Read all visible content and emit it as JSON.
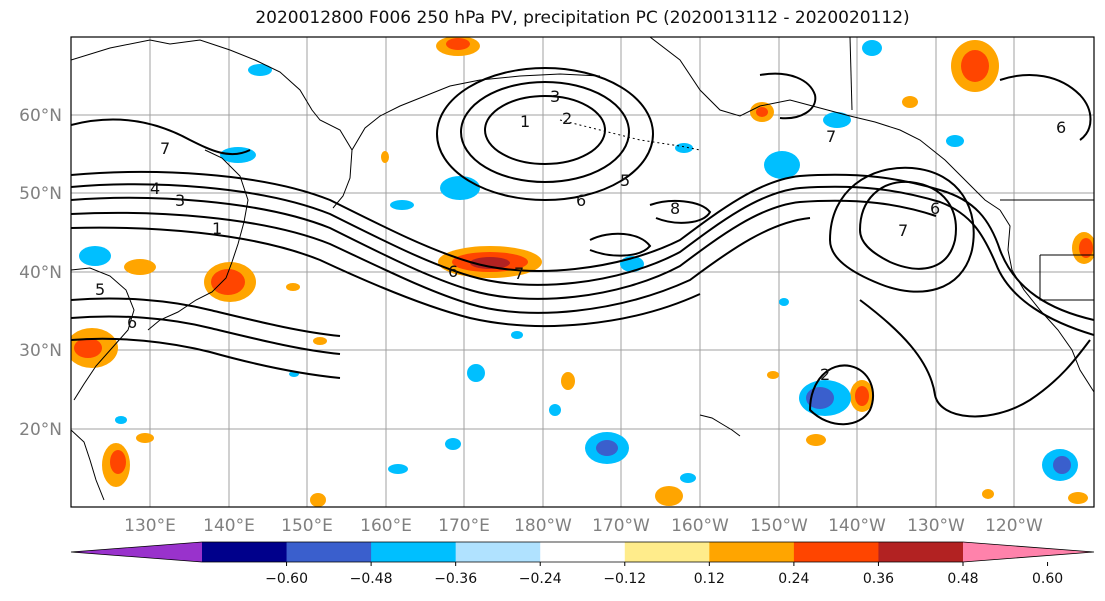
{
  "title": "2020012800 F006 250 hPa PV, precipitation PC (2020013112 - 2020020112)",
  "map": {
    "lat_labels": [
      "60°N",
      "50°N",
      "40°N",
      "30°N",
      "20°N"
    ],
    "lon_labels": [
      "130°E",
      "140°E",
      "150°E",
      "160°E",
      "170°E",
      "180°W",
      "170°W",
      "160°W",
      "150°W",
      "140°W",
      "130°W",
      "120°W"
    ],
    "pv_contour_labels": [
      "1",
      "2",
      "3",
      "4",
      "5",
      "6",
      "7",
      "8"
    ]
  },
  "colorbar": {
    "ticks": [
      "−0.60",
      "−0.48",
      "−0.36",
      "−0.24",
      "−0.12",
      "0.12",
      "0.24",
      "0.36",
      "0.48",
      "0.60"
    ],
    "colors": [
      "#9932cc",
      "#00008b",
      "#3a5fcd",
      "#00bfff",
      "#b0e2ff",
      "#ffffff",
      "#ffec8b",
      "#ffa500",
      "#ff4500",
      "#b22222",
      "#ff82ab"
    ]
  }
}
